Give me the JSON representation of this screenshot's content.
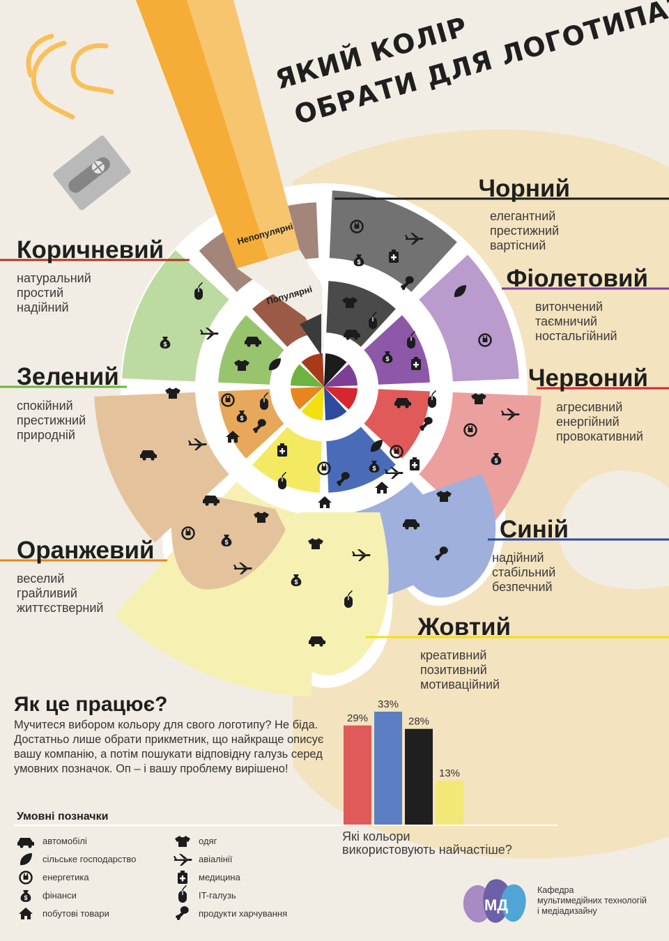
{
  "title": {
    "line1": "ЯКИЙ КОЛІР",
    "line2": "ОБРАТИ ДЛЯ ЛОГОТИПА?"
  },
  "pencil": {
    "unpopular": "Непопулярні",
    "popular": "Популярні"
  },
  "colors": {
    "black": {
      "name": "Чорний",
      "hex": "#1c1c1c",
      "adjectives": [
        "елегантний",
        "престижний",
        "вартісний"
      ]
    },
    "purple": {
      "name": "Фіолетовий",
      "hex": "#7d3f96",
      "adjectives": [
        "витончений",
        "таємничий",
        "ностальгійний"
      ]
    },
    "red": {
      "name": "Червоний",
      "hex": "#d8262f",
      "adjectives": [
        "агресивний",
        "енергійний",
        "провокативний"
      ]
    },
    "blue": {
      "name": "Синій",
      "hex": "#2e4a9e",
      "adjectives": [
        "надійний",
        "стабільний",
        "безпечний"
      ]
    },
    "yellow": {
      "name": "Жовтий",
      "hex": "#f2e10f",
      "adjectives": [
        "креативний",
        "позитивний",
        "мотиваційний"
      ]
    },
    "orange": {
      "name": "Оранжевий",
      "hex": "#e8851f",
      "adjectives": [
        "веселий",
        "грайливий",
        "життєстверний"
      ]
    },
    "green": {
      "name": "Зелений",
      "hex": "#6db33f",
      "adjectives": [
        "спокійний",
        "престижний",
        "природній"
      ]
    },
    "brown": {
      "name": "Коричневий",
      "hex": "#a83a1c",
      "adjectives": [
        "натуральний",
        "простий",
        "надійний"
      ]
    }
  },
  "how": {
    "heading": "Як це працює?",
    "lines": [
      "Мучитеся вибором кольору для свого логотипу? Не біда.",
      "Достатньо лише обрати прикметник, що найкраще описує",
      "вашу компанію, а потім пошукати відповідну галузь серед",
      "умовних позначок. Оп – і вашу проблему вирішено!"
    ]
  },
  "chart_data": {
    "type": "bar",
    "categories": [
      "Червоний",
      "Синій",
      "Чорний",
      "Жовтий"
    ],
    "values": [
      29,
      33,
      28,
      13
    ],
    "value_labels": [
      "29%",
      "33%",
      "28%",
      "13%"
    ],
    "colors": [
      "#e05a5a",
      "#5b7fc2",
      "#1f1f1f",
      "#f2e878"
    ],
    "caption": [
      "Які кольори",
      "використовують найчастіше?"
    ],
    "ylim": [
      0,
      33
    ]
  },
  "legend": {
    "heading": "Умовні позначки",
    "items": [
      {
        "icon": "car-icon",
        "label": "автомобілі"
      },
      {
        "icon": "leaf-icon",
        "label": "сільське господарство"
      },
      {
        "icon": "plug-icon",
        "label": "енергетика"
      },
      {
        "icon": "moneybag-icon",
        "label": "фінанси"
      },
      {
        "icon": "house-icon",
        "label": "побутові товари"
      },
      {
        "icon": "tshirt-icon",
        "label": "одяг"
      },
      {
        "icon": "plane-icon",
        "label": "авіалінії"
      },
      {
        "icon": "medicine-icon",
        "label": "медицина"
      },
      {
        "icon": "mouse-icon",
        "label": "IT-галузь"
      },
      {
        "icon": "drumstick-icon",
        "label": "продукти харчування"
      }
    ]
  },
  "footer": {
    "logo_text": "МД",
    "lines": [
      "Кафедра",
      "мультимедійних технологій",
      "і медіадизайну"
    ]
  }
}
